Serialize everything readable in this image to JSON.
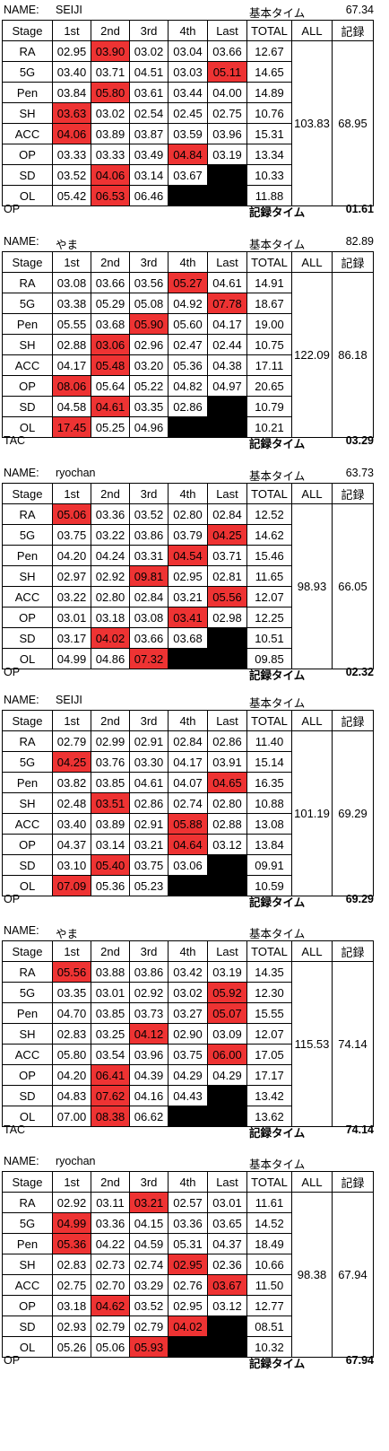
{
  "labels": {
    "name": "NAME:",
    "base_time": "基本タイム",
    "record_time": "記録タイム",
    "headers": [
      "Stage",
      "1st",
      "2nd",
      "3rd",
      "4th",
      "Last",
      "TOTAL",
      "ALL",
      "記録"
    ]
  },
  "colors": {
    "highlight": "#ee3333",
    "blank": "#000000"
  },
  "blocks": [
    {
      "name": "SEIJI",
      "base_time": "67.34",
      "mode": "OP",
      "record_time": "01.61",
      "all": "103.83",
      "record": "68.95",
      "rows": [
        {
          "stage": "RA",
          "times": [
            "02.95",
            "03.90",
            "03.02",
            "03.04",
            "03.66"
          ],
          "total": "12.67",
          "red": [
            1
          ]
        },
        {
          "stage": "5G",
          "times": [
            "03.40",
            "03.71",
            "04.51",
            "03.03",
            "05.11"
          ],
          "total": "14.65",
          "red": [
            4
          ]
        },
        {
          "stage": "Pen",
          "times": [
            "03.84",
            "05.80",
            "03.61",
            "03.44",
            "04.00"
          ],
          "total": "14.89",
          "red": [
            1
          ]
        },
        {
          "stage": "SH",
          "times": [
            "03.63",
            "03.02",
            "02.54",
            "02.45",
            "02.75"
          ],
          "total": "10.76",
          "red": [
            0
          ]
        },
        {
          "stage": "ACC",
          "times": [
            "04.06",
            "03.89",
            "03.87",
            "03.59",
            "03.96"
          ],
          "total": "15.31",
          "red": [
            0
          ]
        },
        {
          "stage": "OP",
          "times": [
            "03.33",
            "03.33",
            "03.49",
            "04.84",
            "03.19"
          ],
          "total": "13.34",
          "red": [
            3
          ]
        },
        {
          "stage": "SD",
          "times": [
            "03.52",
            "04.06",
            "03.14",
            "03.67",
            ""
          ],
          "total": "10.33",
          "red": [
            1
          ],
          "black": [
            4
          ]
        },
        {
          "stage": "OL",
          "times": [
            "05.42",
            "06.53",
            "06.46",
            "",
            ""
          ],
          "total": "11.88",
          "red": [
            1
          ],
          "black": [
            3,
            4
          ]
        }
      ]
    },
    {
      "name": "やま",
      "base_time": "82.89",
      "mode": "TAC",
      "record_time": "03.29",
      "all": "122.09",
      "record": "86.18",
      "rows": [
        {
          "stage": "RA",
          "times": [
            "03.08",
            "03.66",
            "03.56",
            "05.27",
            "04.61"
          ],
          "total": "14.91",
          "red": [
            3
          ]
        },
        {
          "stage": "5G",
          "times": [
            "03.38",
            "05.29",
            "05.08",
            "04.92",
            "07.78"
          ],
          "total": "18.67",
          "red": [
            4
          ]
        },
        {
          "stage": "Pen",
          "times": [
            "05.55",
            "03.68",
            "05.90",
            "05.60",
            "04.17"
          ],
          "total": "19.00",
          "red": [
            2
          ]
        },
        {
          "stage": "SH",
          "times": [
            "02.88",
            "03.06",
            "02.96",
            "02.47",
            "02.44"
          ],
          "total": "10.75",
          "red": [
            1
          ]
        },
        {
          "stage": "ACC",
          "times": [
            "04.17",
            "05.48",
            "03.20",
            "05.36",
            "04.38"
          ],
          "total": "17.11",
          "red": [
            1
          ]
        },
        {
          "stage": "OP",
          "times": [
            "08.06",
            "05.64",
            "05.22",
            "04.82",
            "04.97"
          ],
          "total": "20.65",
          "red": [
            0
          ]
        },
        {
          "stage": "SD",
          "times": [
            "04.58",
            "04.61",
            "03.35",
            "02.86",
            ""
          ],
          "total": "10.79",
          "red": [
            1
          ],
          "black": [
            4
          ]
        },
        {
          "stage": "OL",
          "times": [
            "17.45",
            "05.25",
            "04.96",
            "",
            ""
          ],
          "total": "10.21",
          "red": [
            0
          ],
          "black": [
            3,
            4
          ]
        }
      ]
    },
    {
      "name": "ryochan",
      "base_time": "63.73",
      "mode": "OP",
      "record_time": "02.32",
      "all": "98.93",
      "record": "66.05",
      "rows": [
        {
          "stage": "RA",
          "times": [
            "05.06",
            "03.36",
            "03.52",
            "02.80",
            "02.84"
          ],
          "total": "12.52",
          "red": [
            0
          ]
        },
        {
          "stage": "5G",
          "times": [
            "03.75",
            "03.22",
            "03.86",
            "03.79",
            "04.25"
          ],
          "total": "14.62",
          "red": [
            4
          ]
        },
        {
          "stage": "Pen",
          "times": [
            "04.20",
            "04.24",
            "03.31",
            "04.54",
            "03.71"
          ],
          "total": "15.46",
          "red": [
            3
          ]
        },
        {
          "stage": "SH",
          "times": [
            "02.97",
            "02.92",
            "09.81",
            "02.95",
            "02.81"
          ],
          "total": "11.65",
          "red": [
            2
          ]
        },
        {
          "stage": "ACC",
          "times": [
            "03.22",
            "02.80",
            "02.84",
            "03.21",
            "05.56"
          ],
          "total": "12.07",
          "red": [
            4
          ]
        },
        {
          "stage": "OP",
          "times": [
            "03.01",
            "03.18",
            "03.08",
            "03.41",
            "02.98"
          ],
          "total": "12.25",
          "red": [
            3
          ]
        },
        {
          "stage": "SD",
          "times": [
            "03.17",
            "04.02",
            "03.66",
            "03.68",
            ""
          ],
          "total": "10.51",
          "red": [
            1
          ],
          "black": [
            4
          ]
        },
        {
          "stage": "OL",
          "times": [
            "04.99",
            "04.86",
            "07.32",
            "",
            ""
          ],
          "total": "09.85",
          "red": [
            2
          ],
          "black": [
            3,
            4
          ]
        }
      ]
    },
    {
      "name": "SEIJI",
      "base_time": "",
      "mode": "OP",
      "record_time": "69.29",
      "all": "101.19",
      "record": "69.29",
      "rows": [
        {
          "stage": "RA",
          "times": [
            "02.79",
            "02.99",
            "02.91",
            "02.84",
            "02.86"
          ],
          "total": "11.40",
          "red": []
        },
        {
          "stage": "5G",
          "times": [
            "04.25",
            "03.76",
            "03.30",
            "04.17",
            "03.91"
          ],
          "total": "15.14",
          "red": [
            0
          ]
        },
        {
          "stage": "Pen",
          "times": [
            "03.82",
            "03.85",
            "04.61",
            "04.07",
            "04.65"
          ],
          "total": "16.35",
          "red": [
            4
          ]
        },
        {
          "stage": "SH",
          "times": [
            "02.48",
            "03.51",
            "02.86",
            "02.74",
            "02.80"
          ],
          "total": "10.88",
          "red": [
            1
          ]
        },
        {
          "stage": "ACC",
          "times": [
            "03.40",
            "03.89",
            "02.91",
            "05.88",
            "02.88"
          ],
          "total": "13.08",
          "red": [
            3
          ]
        },
        {
          "stage": "OP",
          "times": [
            "04.37",
            "03.14",
            "03.21",
            "04.64",
            "03.12"
          ],
          "total": "13.84",
          "red": [
            3
          ]
        },
        {
          "stage": "SD",
          "times": [
            "03.10",
            "05.40",
            "03.75",
            "03.06",
            ""
          ],
          "total": "09.91",
          "red": [
            1
          ],
          "black": [
            4
          ]
        },
        {
          "stage": "OL",
          "times": [
            "07.09",
            "05.36",
            "05.23",
            "",
            ""
          ],
          "total": "10.59",
          "red": [
            0
          ],
          "black": [
            3,
            4
          ]
        }
      ]
    },
    {
      "name": "やま",
      "base_time": "",
      "mode": "TAC",
      "record_time": "74.14",
      "all": "115.53",
      "record": "74.14",
      "rows": [
        {
          "stage": "RA",
          "times": [
            "05.56",
            "03.88",
            "03.86",
            "03.42",
            "03.19"
          ],
          "total": "14.35",
          "red": [
            0
          ]
        },
        {
          "stage": "5G",
          "times": [
            "03.35",
            "03.01",
            "02.92",
            "03.02",
            "05.92"
          ],
          "total": "12.30",
          "red": [
            4
          ]
        },
        {
          "stage": "Pen",
          "times": [
            "04.70",
            "03.85",
            "03.73",
            "03.27",
            "05.07"
          ],
          "total": "15.55",
          "red": [
            4
          ]
        },
        {
          "stage": "SH",
          "times": [
            "02.83",
            "03.25",
            "04.12",
            "02.90",
            "03.09"
          ],
          "total": "12.07",
          "red": [
            2
          ]
        },
        {
          "stage": "ACC",
          "times": [
            "05.80",
            "03.54",
            "03.96",
            "03.75",
            "06.00"
          ],
          "total": "17.05",
          "red": [
            4
          ]
        },
        {
          "stage": "OP",
          "times": [
            "04.20",
            "06.41",
            "04.39",
            "04.29",
            "04.29"
          ],
          "total": "17.17",
          "red": [
            1
          ]
        },
        {
          "stage": "SD",
          "times": [
            "04.83",
            "07.62",
            "04.16",
            "04.43",
            ""
          ],
          "total": "13.42",
          "red": [
            1
          ],
          "black": [
            4
          ]
        },
        {
          "stage": "OL",
          "times": [
            "07.00",
            "08.38",
            "06.62",
            "",
            ""
          ],
          "total": "13.62",
          "red": [
            1
          ],
          "black": [
            3,
            4
          ]
        }
      ]
    },
    {
      "name": "ryochan",
      "base_time": "",
      "mode": "OP",
      "record_time": "67.94",
      "all": "98.38",
      "record": "67.94",
      "rows": [
        {
          "stage": "RA",
          "times": [
            "02.92",
            "03.11",
            "03.21",
            "02.57",
            "03.01"
          ],
          "total": "11.61",
          "red": [
            2
          ]
        },
        {
          "stage": "5G",
          "times": [
            "04.99",
            "03.36",
            "04.15",
            "03.36",
            "03.65"
          ],
          "total": "14.52",
          "red": [
            0
          ]
        },
        {
          "stage": "Pen",
          "times": [
            "05.36",
            "04.22",
            "04.59",
            "05.31",
            "04.37"
          ],
          "total": "18.49",
          "red": [
            0
          ]
        },
        {
          "stage": "SH",
          "times": [
            "02.83",
            "02.73",
            "02.74",
            "02.95",
            "02.36"
          ],
          "total": "10.66",
          "red": [
            3
          ]
        },
        {
          "stage": "ACC",
          "times": [
            "02.75",
            "02.70",
            "03.29",
            "02.76",
            "03.67"
          ],
          "total": "11.50",
          "red": [
            4
          ]
        },
        {
          "stage": "OP",
          "times": [
            "03.18",
            "04.62",
            "03.52",
            "02.95",
            "03.12"
          ],
          "total": "12.77",
          "red": [
            1
          ]
        },
        {
          "stage": "SD",
          "times": [
            "02.93",
            "02.79",
            "02.79",
            "04.02",
            ""
          ],
          "total": "08.51",
          "red": [
            3
          ],
          "black": [
            4
          ]
        },
        {
          "stage": "OL",
          "times": [
            "05.26",
            "05.06",
            "05.93",
            "",
            ""
          ],
          "total": "10.32",
          "red": [
            2
          ],
          "black": [
            3,
            4
          ]
        }
      ]
    }
  ]
}
